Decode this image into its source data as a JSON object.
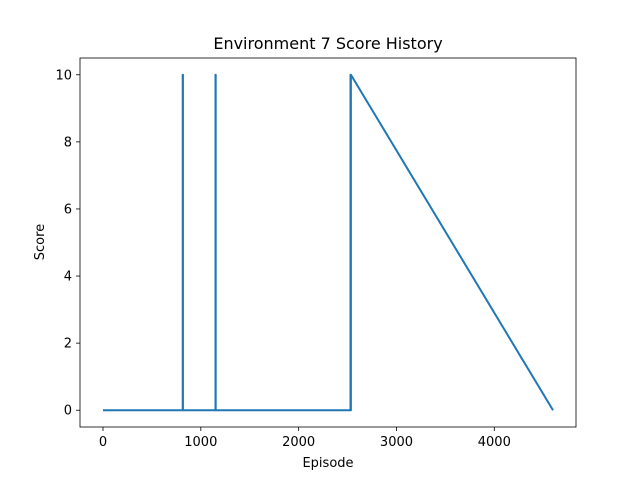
{
  "chart_data": {
    "type": "line",
    "title": "Environment 7 Score History",
    "xlabel": "Episode",
    "ylabel": "Score",
    "xlim": [
      -235,
      4835
    ],
    "ylim": [
      -0.5,
      10.5
    ],
    "xticks": [
      0,
      1000,
      2000,
      3000,
      4000
    ],
    "yticks": [
      0,
      2,
      4,
      6,
      8,
      10
    ],
    "grid": false,
    "legend": "none",
    "series": [
      {
        "color": "#1f77b4",
        "x": [
          0,
          815,
          815,
          817,
          817,
          1150,
          1150,
          1152,
          1152,
          2530,
          2530,
          2532,
          2532,
          2534,
          2534,
          4600
        ],
        "y": [
          0,
          0,
          10,
          10,
          0,
          0,
          10,
          10,
          0,
          0,
          10,
          10,
          0,
          0,
          10,
          0
        ]
      }
    ]
  }
}
